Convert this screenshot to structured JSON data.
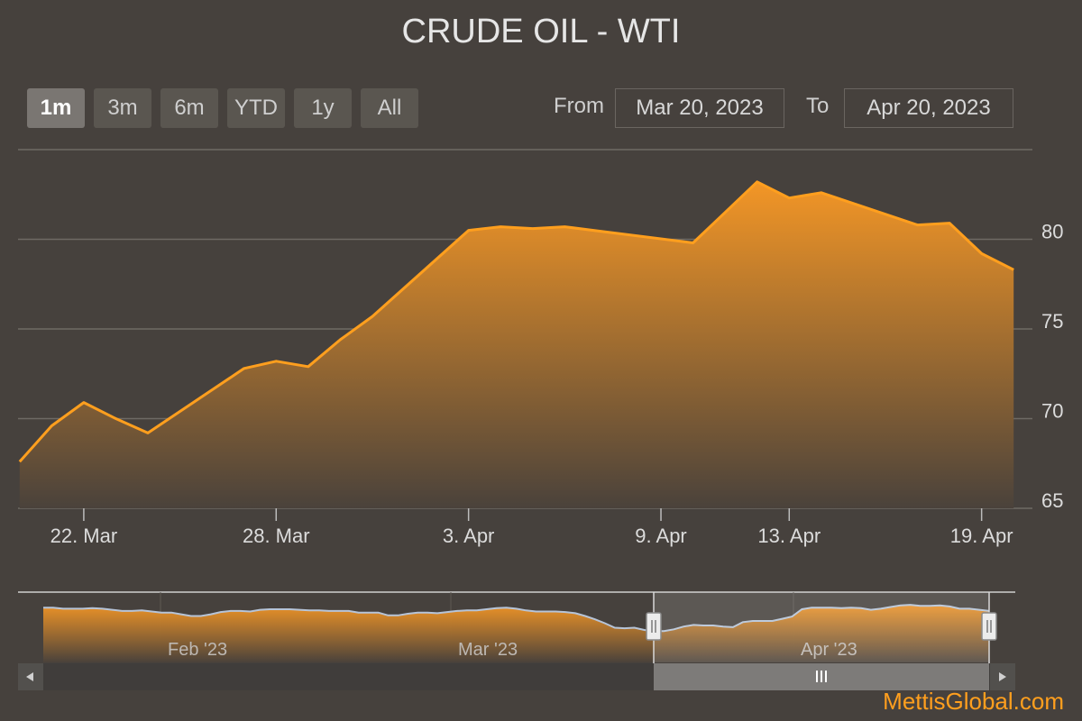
{
  "title": "CRUDE OIL - WTI",
  "range_selector": {
    "buttons": [
      "1m",
      "3m",
      "6m",
      "YTD",
      "1y",
      "All"
    ],
    "selected": "1m",
    "from_label": "From",
    "from_value": "Mar 20, 2023",
    "to_label": "To",
    "to_value": "Apr 20, 2023"
  },
  "credit": "MettisGlobal.com",
  "colors": {
    "line": "#ff9f1e",
    "fill_top": "#f39626",
    "navigator_line": "#b6c4d8",
    "background": "#46413d"
  },
  "chart_data": {
    "type": "area",
    "x": [
      "2023-03-20",
      "2023-03-21",
      "2023-03-22",
      "2023-03-23",
      "2023-03-24",
      "2023-03-27",
      "2023-03-28",
      "2023-03-29",
      "2023-03-30",
      "2023-03-31",
      "2023-04-03",
      "2023-04-04",
      "2023-04-05",
      "2023-04-06",
      "2023-04-10",
      "2023-04-11",
      "2023-04-12",
      "2023-04-13",
      "2023-04-14",
      "2023-04-17",
      "2023-04-18",
      "2023-04-19",
      "2023-04-20"
    ],
    "y": [
      67.6,
      69.6,
      70.9,
      70.0,
      69.2,
      72.8,
      73.2,
      72.9,
      74.4,
      75.7,
      80.5,
      80.7,
      80.6,
      80.7,
      79.8,
      81.5,
      83.2,
      82.3,
      82.6,
      80.8,
      80.9,
      79.2,
      78.3
    ],
    "xlabel": "",
    "ylabel": "",
    "ylim": [
      65,
      85
    ],
    "yticks": [
      65,
      70,
      75,
      80
    ],
    "x_tick_labels": [
      "22. Mar",
      "28. Mar",
      "3. Apr",
      "9. Apr",
      "13. Apr",
      "19. Apr"
    ],
    "grid": true,
    "navigator": {
      "labels": [
        "Feb '23",
        "Mar '23",
        "Apr '23"
      ],
      "values": [
        82,
        82,
        80,
        80,
        80,
        81,
        80,
        78,
        76,
        76,
        77,
        75,
        73,
        73,
        70,
        67,
        67,
        70,
        74,
        76,
        76,
        75,
        78,
        79,
        79,
        79,
        78,
        77,
        77,
        76,
        76,
        76,
        73,
        73,
        73,
        68,
        68,
        71,
        73,
        73,
        72,
        74,
        76,
        77,
        77,
        79,
        81,
        82,
        80,
        77,
        75,
        75,
        75,
        74,
        72,
        67,
        61,
        54,
        46,
        45,
        46,
        42,
        40,
        40,
        43,
        48,
        51,
        50,
        50,
        48,
        47,
        56,
        58,
        58,
        58,
        62,
        66,
        79,
        82,
        82,
        82,
        81,
        82,
        81,
        78,
        80,
        83,
        86,
        87,
        85,
        85,
        86,
        84,
        80,
        80,
        78,
        76
      ],
      "ylim": [
        0,
        100
      ],
      "window": [
        "2023-03-20",
        "2023-04-20"
      ]
    }
  }
}
